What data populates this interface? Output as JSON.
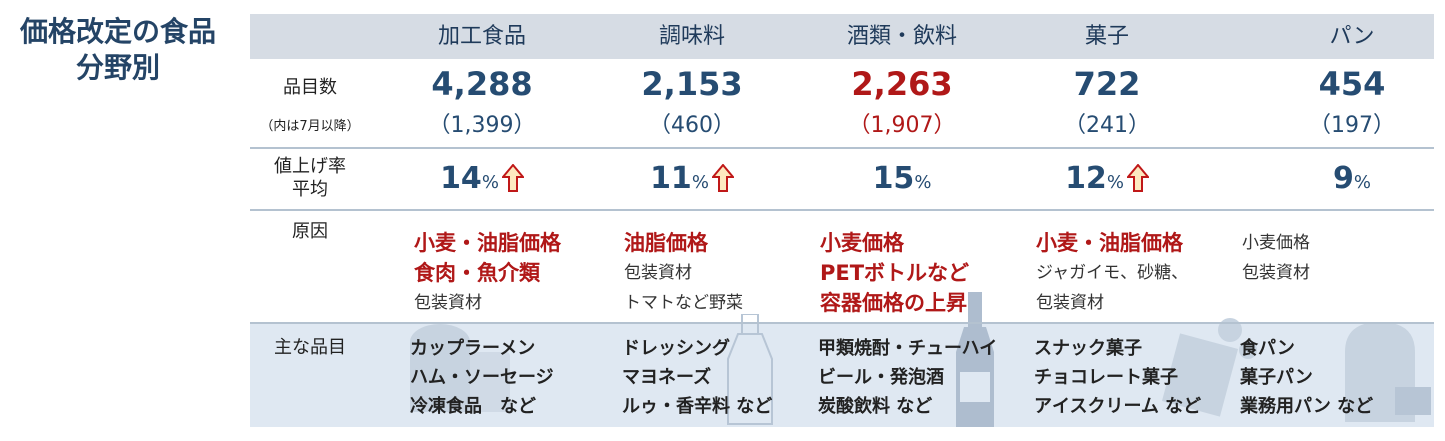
{
  "title": {
    "line1": "価格改定の食品",
    "line2": "分野別"
  },
  "categories": [
    "加工食品",
    "調味料",
    "酒類・飲料",
    "菓子",
    "パン"
  ],
  "labels": {
    "count": "品目数",
    "count_note": "（内は7月以降）",
    "rate_line1": "値上げ率",
    "rate_line2": "平均",
    "cause": "原因",
    "items": "主な品目"
  },
  "counts": [
    "4,288",
    "2,153",
    "2,263",
    "722",
    "454"
  ],
  "counts_since_july": [
    "（1,399）",
    "（460）",
    "（1,907）",
    "（241）",
    "（197）"
  ],
  "highlight_color": "#b01818",
  "rates": [
    {
      "value": "14",
      "unit": "%",
      "arrow": true
    },
    {
      "value": "11",
      "unit": "%",
      "arrow": true
    },
    {
      "value": "15",
      "unit": "%",
      "arrow": false
    },
    {
      "value": "12",
      "unit": "%",
      "arrow": true
    },
    {
      "value": "9",
      "unit": "%",
      "arrow": false
    }
  ],
  "causes": [
    {
      "bold": [
        "小麦・油脂価格",
        "食肉・魚介類"
      ],
      "normal": [
        "包装資材"
      ]
    },
    {
      "bold": [
        "油脂価格"
      ],
      "normal": [
        "包装資材",
        "トマトなど野菜"
      ]
    },
    {
      "bold": [
        "小麦価格",
        "PETボトルなど",
        "容器価格の上昇"
      ],
      "normal": []
    },
    {
      "bold": [
        "小麦・油脂価格"
      ],
      "normal": [
        "ジャガイモ、砂糖、",
        "包装資材"
      ]
    },
    {
      "bold": [],
      "normal": [
        "小麦価格",
        "包装資材"
      ]
    }
  ],
  "items": [
    [
      "カップラーメン",
      "ハム・ソーセージ",
      "冷凍食品　など"
    ],
    [
      "ドレッシング",
      "マヨネーズ",
      "ルゥ・香辛料 など"
    ],
    [
      "甲類焼酎・チューハイ",
      "ビール・発泡酒",
      "炭酸飲料 など"
    ],
    [
      "スナック菓子",
      "チョコレート菓子",
      "アイスクリーム など"
    ],
    [
      "食パン",
      "菓子パン",
      "業務用パン など"
    ]
  ]
}
